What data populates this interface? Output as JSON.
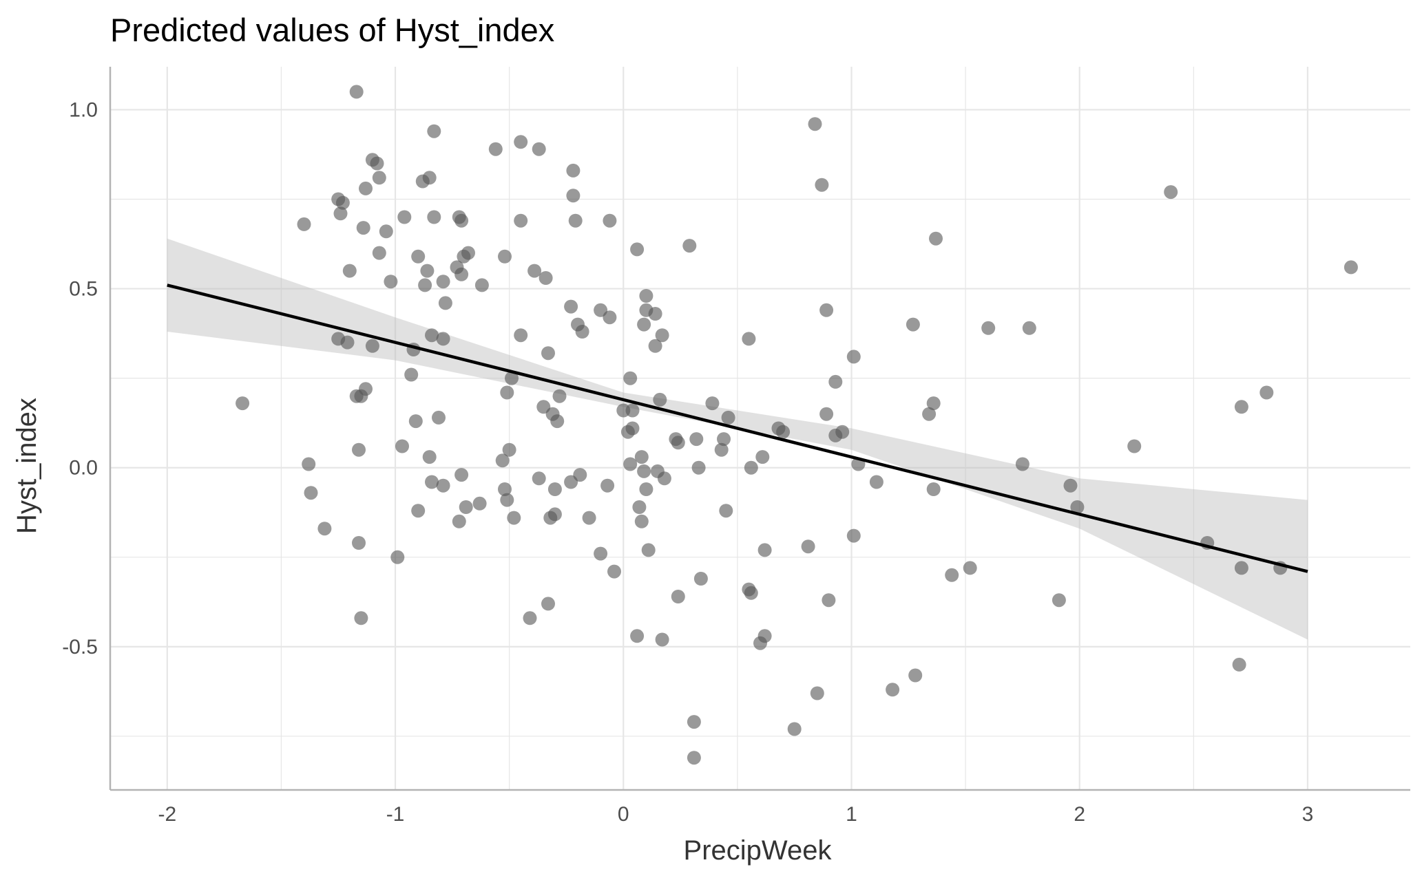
{
  "chart_data": {
    "type": "scatter",
    "title": "Predicted values of Hyst_index",
    "xlabel": "PrecipWeek",
    "ylabel": "Hyst_index",
    "xlim": [
      -2.25,
      3.45
    ],
    "ylim": [
      -0.9,
      1.12
    ],
    "x_ticks": [
      -2,
      -1,
      0,
      1,
      2,
      3
    ],
    "x_tick_labels": [
      "-2",
      "-1",
      "0",
      "1",
      "2",
      "3"
    ],
    "y_ticks": [
      -0.5,
      0.0,
      0.5,
      1.0
    ],
    "y_tick_labels": [
      "-0.5",
      "0.0",
      "0.5",
      "1.0"
    ],
    "grid": true,
    "colors": {
      "points": "#555555",
      "line": "#000000",
      "band": "#bdbdbd",
      "grid": "#e6e6e6",
      "axis": "#b3b3b3"
    },
    "series": [
      {
        "kind": "points",
        "x": [
          -1.67,
          -1.4,
          -1.38,
          -1.37,
          -1.31,
          -1.25,
          -1.25,
          -1.24,
          -1.23,
          -1.21,
          -1.2,
          -1.17,
          -1.17,
          -1.16,
          -1.16,
          -1.15,
          -1.15,
          -1.14,
          -1.13,
          -1.13,
          -1.1,
          -1.1,
          -1.08,
          -1.07,
          -1.07,
          -1.04,
          -1.02,
          -0.99,
          -0.97,
          -0.96,
          -0.93,
          -0.92,
          -0.91,
          -0.9,
          -0.9,
          -0.88,
          -0.87,
          -0.86,
          -0.85,
          -0.85,
          -0.84,
          -0.84,
          -0.83,
          -0.83,
          -0.81,
          -0.79,
          -0.79,
          -0.79,
          -0.78,
          -0.73,
          -0.72,
          -0.72,
          -0.71,
          -0.71,
          -0.71,
          -0.7,
          -0.69,
          -0.68,
          -0.62,
          -0.63,
          -0.56,
          -0.53,
          -0.52,
          -0.52,
          -0.51,
          -0.51,
          -0.5,
          -0.49,
          -0.48,
          -0.45,
          -0.45,
          -0.45,
          -0.41,
          -0.39,
          -0.37,
          -0.37,
          -0.35,
          -0.34,
          -0.33,
          -0.33,
          -0.32,
          -0.31,
          -0.3,
          -0.3,
          -0.29,
          -0.28,
          -0.23,
          -0.23,
          -0.22,
          -0.22,
          -0.21,
          -0.2,
          -0.19,
          -0.18,
          -0.15,
          -0.1,
          -0.1,
          -0.07,
          -0.06,
          -0.06,
          -0.04,
          0.0,
          0.02,
          0.03,
          0.03,
          0.04,
          0.04,
          0.06,
          0.06,
          0.07,
          0.08,
          0.08,
          0.09,
          0.09,
          0.1,
          0.1,
          0.1,
          0.11,
          0.14,
          0.14,
          0.15,
          0.16,
          0.17,
          0.17,
          0.18,
          0.23,
          0.24,
          0.24,
          0.29,
          0.31,
          0.31,
          0.32,
          0.33,
          0.34,
          0.39,
          0.43,
          0.44,
          0.45,
          0.46,
          0.55,
          0.55,
          0.56,
          0.56,
          0.6,
          0.61,
          0.62,
          0.62,
          0.68,
          0.7,
          0.75,
          0.81,
          0.84,
          0.85,
          0.87,
          0.89,
          0.89,
          0.9,
          0.93,
          0.93,
          0.96,
          1.01,
          1.01,
          1.03,
          1.11,
          1.18,
          1.27,
          1.28,
          1.34,
          1.36,
          1.36,
          1.37,
          1.44,
          1.52,
          1.6,
          1.75,
          1.78,
          1.91,
          1.96,
          1.99,
          2.24,
          2.4,
          2.56,
          2.7,
          2.71,
          2.71,
          2.82,
          2.88,
          3.19
        ],
        "y": [
          0.18,
          0.68,
          0.01,
          -0.07,
          -0.17,
          0.36,
          0.75,
          0.71,
          0.74,
          0.35,
          0.55,
          0.2,
          1.05,
          0.05,
          -0.21,
          -0.42,
          0.2,
          0.67,
          0.22,
          0.78,
          0.86,
          0.34,
          0.85,
          0.81,
          0.6,
          0.66,
          0.52,
          -0.25,
          0.06,
          0.7,
          0.26,
          0.33,
          0.13,
          -0.12,
          0.59,
          0.8,
          0.51,
          0.55,
          0.03,
          0.81,
          -0.04,
          0.37,
          0.7,
          0.94,
          0.14,
          0.36,
          -0.05,
          0.52,
          0.46,
          0.56,
          -0.15,
          0.7,
          0.69,
          -0.02,
          0.54,
          0.59,
          -0.11,
          0.6,
          0.51,
          -0.1,
          0.89,
          0.02,
          0.59,
          -0.06,
          0.21,
          -0.09,
          0.05,
          0.25,
          -0.14,
          0.91,
          0.69,
          0.37,
          -0.42,
          0.55,
          -0.03,
          0.89,
          0.17,
          0.53,
          -0.38,
          0.32,
          -0.14,
          0.15,
          -0.13,
          -0.06,
          0.13,
          0.2,
          -0.04,
          0.45,
          0.83,
          0.76,
          0.69,
          0.4,
          -0.02,
          0.38,
          -0.14,
          -0.24,
          0.44,
          -0.05,
          0.42,
          0.69,
          -0.29,
          0.16,
          0.1,
          0.01,
          0.25,
          0.11,
          0.16,
          0.61,
          -0.47,
          -0.11,
          -0.15,
          0.03,
          -0.01,
          0.4,
          0.44,
          -0.06,
          0.48,
          -0.23,
          0.43,
          0.34,
          -0.01,
          0.19,
          0.37,
          -0.48,
          -0.03,
          0.08,
          -0.36,
          0.07,
          0.62,
          -0.71,
          -0.81,
          0.08,
          0.0,
          -0.31,
          0.18,
          0.05,
          0.08,
          -0.12,
          0.14,
          -0.34,
          0.36,
          -0.35,
          0.0,
          -0.49,
          0.03,
          -0.47,
          -0.23,
          0.11,
          0.1,
          -0.73,
          -0.22,
          0.96,
          -0.63,
          0.79,
          0.44,
          0.15,
          -0.37,
          0.09,
          0.24,
          0.1,
          -0.19,
          0.31,
          0.01,
          -0.04,
          -0.62,
          0.4,
          -0.58,
          0.15,
          -0.06,
          0.18,
          0.64,
          -0.3,
          -0.28,
          0.39,
          0.01,
          0.39,
          -0.37,
          -0.05,
          -0.11,
          0.06,
          0.77,
          -0.21,
          -0.55,
          0.17,
          -0.28,
          0.21,
          -0.28,
          0.56
        ]
      },
      {
        "kind": "line",
        "x": [
          -2,
          3
        ],
        "y": [
          0.51,
          -0.29
        ],
        "ci_x": [
          -2,
          -1,
          0,
          1,
          2,
          3
        ],
        "ci_lower": [
          0.38,
          0.3,
          0.17,
          0.05,
          -0.17,
          -0.48
        ],
        "ci_upper": [
          0.64,
          0.42,
          0.21,
          0.11,
          -0.03,
          -0.09
        ]
      }
    ]
  }
}
